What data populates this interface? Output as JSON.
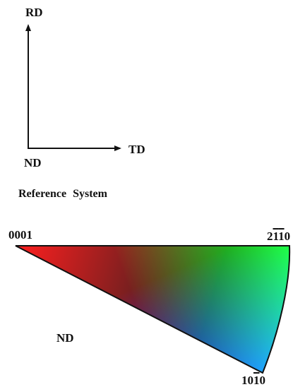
{
  "reference_system": {
    "title": "Reference System",
    "axis_up_label": "RD",
    "axis_right_label": "TD",
    "origin_label": "ND"
  },
  "ipf_legend": {
    "corner_top_left": "0001",
    "corner_top_right": {
      "digits": [
        "2",
        "1",
        "1",
        "0"
      ],
      "overlined": [
        false,
        true,
        true,
        false
      ]
    },
    "corner_bottom": {
      "digits": [
        "1",
        "0",
        "1",
        "0"
      ],
      "overlined": [
        false,
        false,
        true,
        false
      ]
    },
    "projection_label": "ND"
  },
  "colors": {
    "ink": "#111111",
    "corner_0001": "#ff0000",
    "corner_2110": "#00ff00",
    "corner_1010": "#0000ff"
  }
}
